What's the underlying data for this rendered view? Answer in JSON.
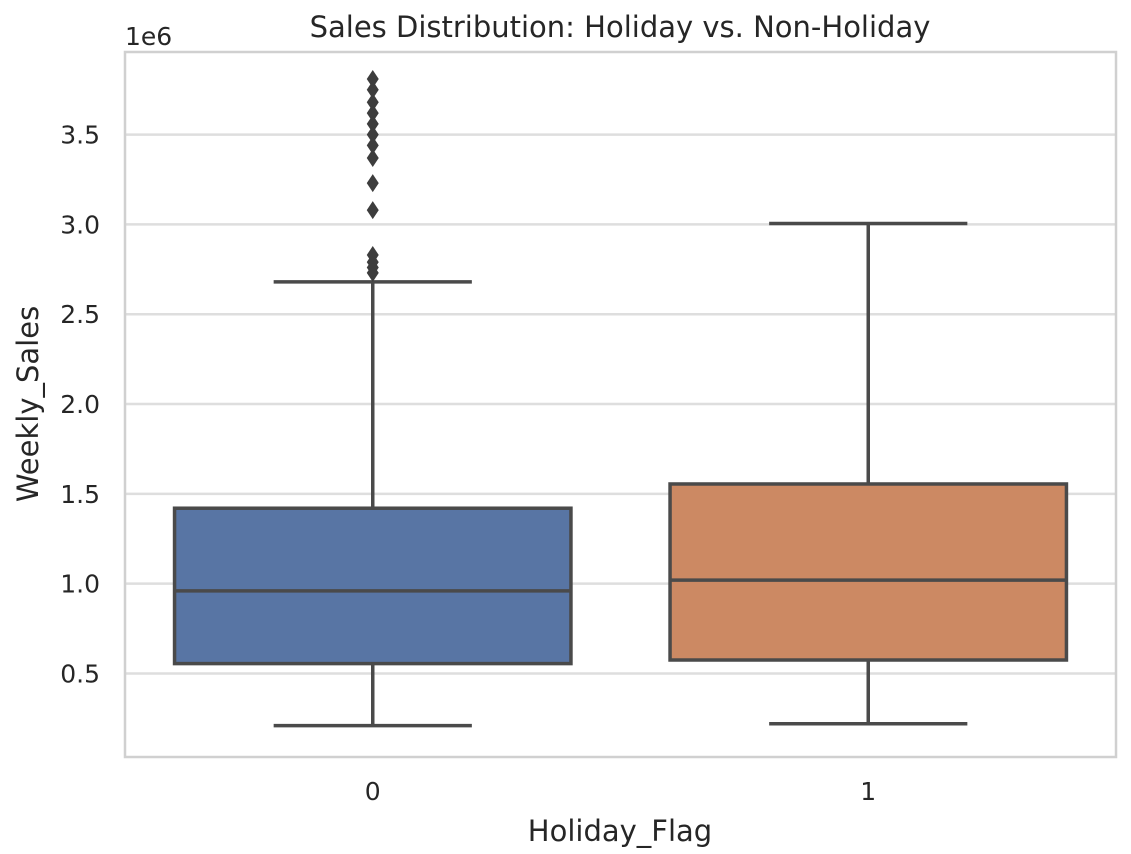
{
  "chart_data": {
    "type": "box",
    "title": "Sales Distribution: Holiday vs. Non-Holiday",
    "xlabel": "Holiday_Flag",
    "ylabel": "Weekly_Sales",
    "offset_label": "1e6",
    "ylim": [
      0.035,
      3.96
    ],
    "yticks": [
      0.5,
      1.0,
      1.5,
      2.0,
      2.5,
      3.0,
      3.5
    ],
    "ytick_labels": [
      "0.5",
      "1.0",
      "1.5",
      "2.0",
      "2.5",
      "3.0",
      "3.5"
    ],
    "grid": true,
    "categories": [
      "0",
      "1"
    ],
    "boxes": [
      {
        "category": "0",
        "color": "#5875a4",
        "whisker_low": 0.21,
        "q1": 0.555,
        "median": 0.96,
        "q3": 1.42,
        "whisker_high": 2.68,
        "outliers": [
          2.73,
          2.76,
          2.79,
          2.83,
          3.08,
          3.23,
          3.37,
          3.44,
          3.5,
          3.56,
          3.62,
          3.68,
          3.75,
          3.81
        ]
      },
      {
        "category": "1",
        "color": "#cc8963",
        "whisker_low": 0.22,
        "q1": 0.575,
        "median": 1.02,
        "q3": 1.555,
        "whisker_high": 3.005,
        "outliers": []
      }
    ]
  }
}
